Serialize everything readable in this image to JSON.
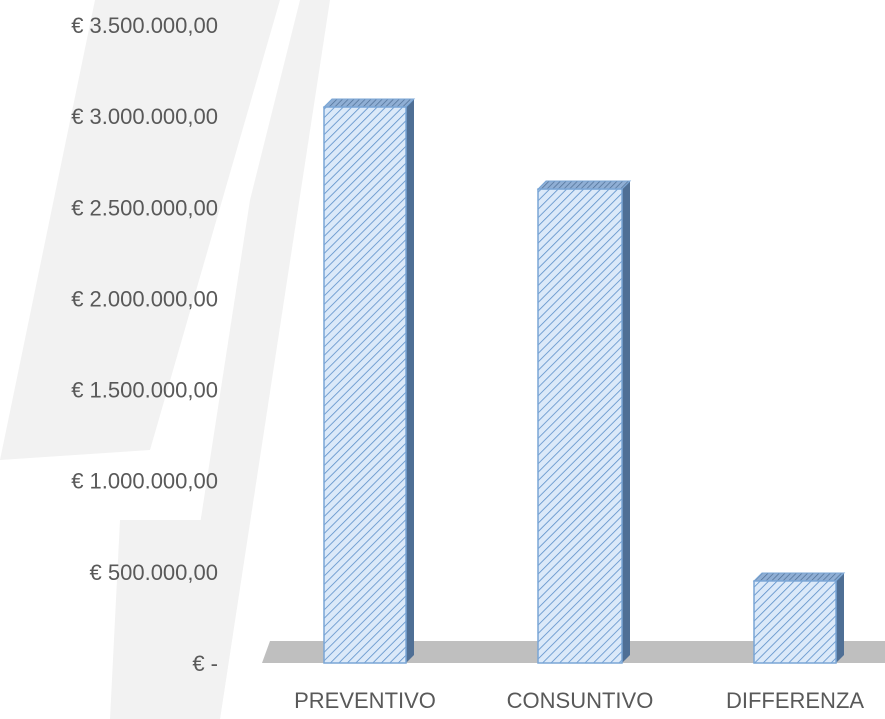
{
  "chart_data": {
    "type": "bar",
    "categories": [
      "PREVENTIVO",
      "CONSUNTIVO",
      "DIFFERENZA"
    ],
    "values": [
      3050000,
      2600000,
      450000
    ],
    "ylim": [
      0,
      3500000
    ],
    "yticks": [
      0,
      500000,
      1000000,
      1500000,
      2000000,
      2500000,
      3000000,
      3500000
    ],
    "ytick_labels": [
      "€ -",
      "€ 500.000,00",
      "€ 1.000.000,00",
      "€ 1.500.000,00",
      "€ 2.000.000,00",
      "€ 2.500.000,00",
      "€ 3.000.000,00",
      "€ 3.500.000,00"
    ],
    "grid": false,
    "legend": "none",
    "title": "",
    "xlabel": "",
    "ylabel": "",
    "bar_style": "3d-column-diagonal-hatch",
    "colors": {
      "bar_fill": "#dbe9f9",
      "hatch": "#5b8fc9",
      "bar_edge": "#7aa6d6",
      "bar_top": "#6f8fb5",
      "bar_side": "#4f6f95",
      "floor": "#bfbfbf",
      "text": "#595959",
      "watermark": "#f2f2f2"
    }
  }
}
